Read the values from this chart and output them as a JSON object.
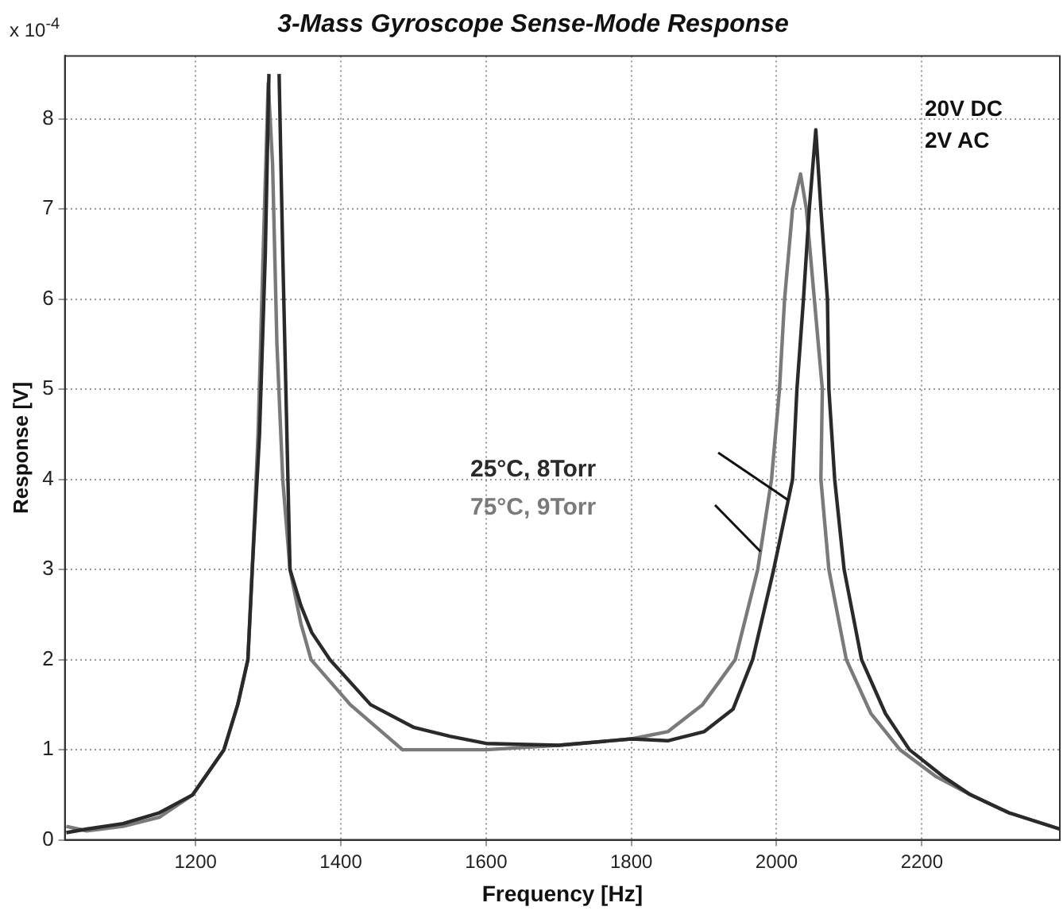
{
  "chart_data": {
    "type": "line",
    "title": "3-Mass Gyroscope Sense-Mode Response",
    "xlabel": "Frequency [Hz]",
    "ylabel": "Response [V]",
    "annotations": [
      "x 10$^{-4}$",
      "20V DC",
      "2V AC"
    ],
    "xlim": [
      1020,
      2390
    ],
    "ylim": [
      0,
      8.7
    ],
    "xticks": [
      1200,
      1400,
      1600,
      1800,
      2000,
      2200
    ],
    "yticks": [
      0,
      1,
      2,
      3,
      4,
      5,
      6,
      7,
      8
    ],
    "grid": true,
    "legend": false,
    "marker": "none",
    "line_style": "solid",
    "series": [
      {
        "name": "25°C, 8Torr",
        "color": "#2a2a2a",
        "x": [
          1022,
          1050,
          1100,
          1150,
          1196,
          1239,
          1258,
          1272,
          1278,
          1288,
          1296,
          1301,
          1308,
          1315,
          1320,
          1330,
          1345,
          1360,
          1385,
          1441,
          1500,
          1550,
          1600,
          1700,
          1800,
          1850,
          1900,
          1940,
          1967,
          1996,
          2022,
          2028,
          2037,
          2045,
          2054,
          2061,
          2070,
          2072,
          2080,
          2093,
          2117,
          2150,
          2183,
          2230,
          2267,
          2320,
          2390
        ],
        "values": [
          0.08,
          0.12,
          0.18,
          0.3,
          0.5,
          1.0,
          1.5,
          2.0,
          3.0,
          4.5,
          6.5,
          8.5,
          null,
          8.5,
          6.5,
          3.0,
          2.6,
          2.3,
          2.0,
          1.5,
          1.25,
          1.15,
          1.07,
          1.05,
          1.12,
          1.1,
          1.2,
          1.45,
          2.0,
          3.0,
          4.0,
          5.0,
          6.0,
          7.0,
          7.88,
          7.0,
          6.0,
          5.0,
          4.0,
          3.0,
          2.0,
          1.4,
          1.0,
          0.7,
          0.5,
          0.3,
          0.12
        ]
      },
      {
        "name": "75°C, 9Torr",
        "color": "#7a7a7a",
        "x": [
          1022,
          1050,
          1100,
          1150,
          1196,
          1239,
          1258,
          1272,
          1278,
          1286,
          1293,
          1300,
          1306,
          1312,
          1320,
          1330,
          1345,
          1359,
          1413,
          1485,
          1550,
          1600,
          1700,
          1800,
          1850,
          1898,
          1943,
          1974,
          1993,
          2004,
          2011,
          2022,
          2033,
          2041,
          2052,
          2063,
          2061,
          2072,
          2096,
          2130,
          2170,
          2220,
          2267,
          2320,
          2390
        ],
        "values": [
          0.15,
          0.1,
          0.15,
          0.25,
          0.5,
          1.0,
          1.5,
          2.0,
          3.0,
          4.5,
          6.5,
          8.4,
          7.5,
          5.5,
          4.0,
          3.0,
          2.4,
          2.0,
          1.5,
          1.0,
          1.0,
          1.0,
          1.05,
          1.12,
          1.2,
          1.5,
          2.0,
          3.0,
          4.0,
          5.0,
          6.0,
          7.0,
          7.39,
          7.0,
          6.0,
          5.0,
          4.0,
          3.0,
          2.0,
          1.4,
          1.0,
          0.7,
          0.5,
          0.3,
          0.12
        ]
      }
    ]
  }
}
